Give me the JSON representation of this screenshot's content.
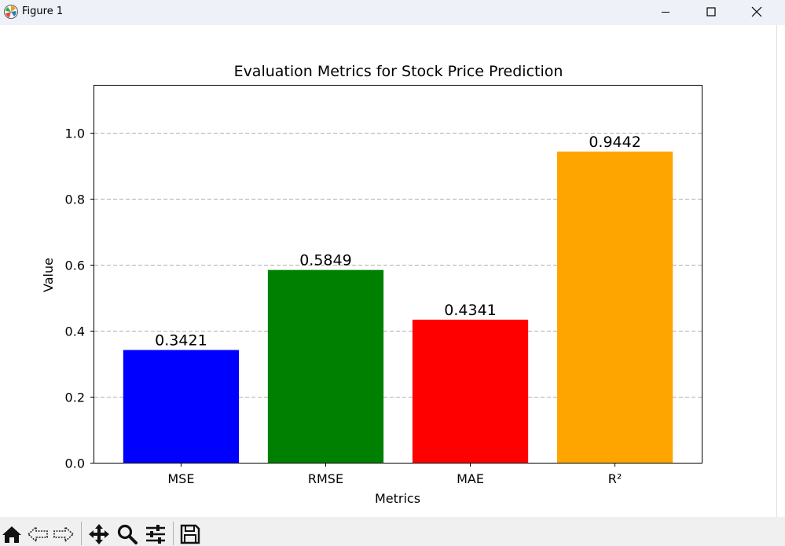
{
  "window": {
    "title": "Figure 1"
  },
  "toolbar": {
    "tools": [
      "home-icon",
      "back-icon",
      "forward-icon",
      "pan-icon",
      "zoom-icon",
      "configure-subplots-icon",
      "save-icon"
    ]
  },
  "colors": {
    "mse": "#0000ff",
    "rmse": "#008000",
    "mae": "#ff0000",
    "r2": "#ffa500"
  },
  "chart_data": {
    "type": "bar",
    "title": "Evaluation Metrics for Stock Price Prediction",
    "xlabel": "Metrics",
    "ylabel": "Value",
    "categories": [
      "MSE",
      "RMSE",
      "MAE",
      "R²"
    ],
    "values": [
      0.3421,
      0.5849,
      0.4341,
      0.9442
    ],
    "value_labels": [
      "0.3421",
      "0.5849",
      "0.4341",
      "0.9442"
    ],
    "bar_colors": [
      "#0000ff",
      "#008000",
      "#ff0000",
      "#ffa500"
    ],
    "ylim": [
      0,
      1.1442
    ],
    "yticks": [
      0.0,
      0.2,
      0.4,
      0.6,
      0.8,
      1.0
    ],
    "ytick_labels": [
      "0.0",
      "0.2",
      "0.4",
      "0.6",
      "0.8",
      "1.0"
    ],
    "grid": "y-dashed",
    "legend": "none"
  }
}
